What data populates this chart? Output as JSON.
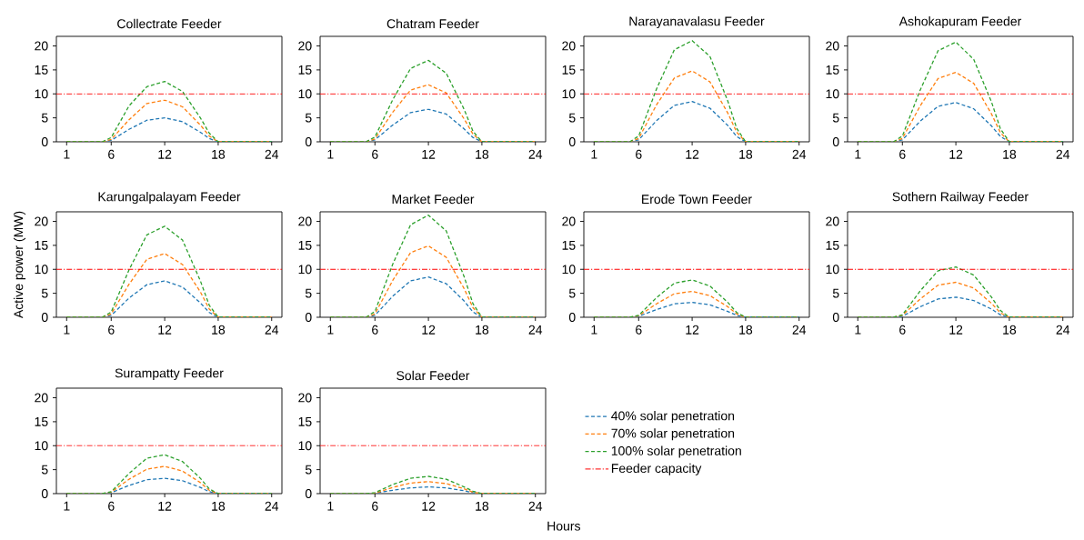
{
  "chart_data": [
    {
      "type": "line",
      "title": "Collectrate Feeder",
      "x": [
        1,
        5,
        6,
        8,
        10,
        12,
        14,
        16,
        17,
        18,
        24
      ],
      "xlim": [
        -0.15,
        25.15
      ],
      "ylim": [
        0,
        22
      ],
      "xticks": [
        1,
        6,
        12,
        18,
        24
      ],
      "yticks": [
        0,
        5,
        10,
        15,
        20
      ],
      "line_style": "dashed",
      "ref_lines": [
        {
          "axis": "y",
          "value": 10,
          "color": "#ff0000",
          "line_style": "dashdot"
        }
      ],
      "series": [
        {
          "color": "#1f77b4",
          "values": [
            0,
            0,
            0.3,
            2.6,
            4.5,
            5.0,
            4.2,
            2.0,
            0.7,
            0,
            0
          ]
        },
        {
          "color": "#ff7f0e",
          "values": [
            0,
            0,
            0.5,
            4.6,
            8.0,
            8.7,
            7.3,
            3.5,
            1.2,
            0,
            0
          ]
        },
        {
          "color": "#2ca02c",
          "values": [
            0,
            0,
            0.9,
            7.5,
            11.5,
            12.6,
            10.5,
            5.0,
            1.8,
            0,
            0
          ]
        }
      ]
    },
    {
      "type": "line",
      "title": "Chatram Feeder",
      "x": [
        1,
        5,
        6,
        8,
        10,
        12,
        14,
        16,
        17,
        18,
        24
      ],
      "xlim": [
        -0.15,
        25.15
      ],
      "ylim": [
        0,
        22
      ],
      "xticks": [
        1,
        6,
        12,
        18,
        24
      ],
      "yticks": [
        0,
        5,
        10,
        15,
        20
      ],
      "line_style": "dashed",
      "ref_lines": [
        {
          "axis": "y",
          "value": 10,
          "color": "#ff0000",
          "line_style": "dashdot"
        }
      ],
      "series": [
        {
          "color": "#1f77b4",
          "values": [
            0,
            0,
            0.4,
            3.5,
            6.1,
            6.8,
            5.8,
            2.7,
            0.9,
            0,
            0
          ]
        },
        {
          "color": "#ff7f0e",
          "values": [
            0,
            0,
            0.6,
            6.2,
            10.8,
            11.9,
            10.2,
            4.8,
            1.6,
            0,
            0
          ]
        },
        {
          "color": "#2ca02c",
          "values": [
            0,
            0,
            1.0,
            8.8,
            15.3,
            17.0,
            14.3,
            6.8,
            2.2,
            0,
            0
          ]
        }
      ]
    },
    {
      "type": "line",
      "title": "Narayanavalasu Feeder",
      "x": [
        1,
        5,
        6,
        8,
        10,
        12,
        14,
        16,
        17,
        18,
        24
      ],
      "xlim": [
        -0.15,
        25.15
      ],
      "ylim": [
        0,
        22
      ],
      "xticks": [
        1,
        6,
        12,
        18,
        24
      ],
      "yticks": [
        0,
        5,
        10,
        15,
        20
      ],
      "line_style": "dashed",
      "ref_lines": [
        {
          "axis": "y",
          "value": 10,
          "color": "#ff0000",
          "line_style": "dashdot"
        }
      ],
      "series": [
        {
          "color": "#1f77b4",
          "values": [
            0,
            0,
            0.4,
            4.4,
            7.6,
            8.4,
            7.0,
            3.4,
            1.1,
            0,
            0
          ]
        },
        {
          "color": "#ff7f0e",
          "values": [
            0,
            0,
            0.7,
            7.7,
            13.3,
            14.8,
            12.5,
            6.0,
            2.0,
            0,
            0
          ]
        },
        {
          "color": "#2ca02c",
          "values": [
            0,
            0,
            1.2,
            11.0,
            19.2,
            21.1,
            17.8,
            8.5,
            2.8,
            0,
            0
          ]
        }
      ]
    },
    {
      "type": "line",
      "title": "Ashokapuram Feeder",
      "x": [
        1,
        5,
        6,
        8,
        10,
        12,
        14,
        16,
        17,
        18,
        24
      ],
      "xlim": [
        -0.15,
        25.15
      ],
      "ylim": [
        0,
        22
      ],
      "xticks": [
        1,
        6,
        12,
        18,
        24
      ],
      "yticks": [
        0,
        5,
        10,
        15,
        20
      ],
      "line_style": "dashed",
      "ref_lines": [
        {
          "axis": "y",
          "value": 10,
          "color": "#ff0000",
          "line_style": "dashdot"
        }
      ],
      "series": [
        {
          "color": "#1f77b4",
          "values": [
            0,
            0,
            0.4,
            4.3,
            7.4,
            8.2,
            6.9,
            3.3,
            1.1,
            0,
            0
          ]
        },
        {
          "color": "#ff7f0e",
          "values": [
            0,
            0,
            0.7,
            7.5,
            13.2,
            14.5,
            12.2,
            5.8,
            1.9,
            0,
            0
          ]
        },
        {
          "color": "#2ca02c",
          "values": [
            0,
            0,
            1.2,
            10.8,
            19.0,
            20.8,
            17.2,
            8.3,
            2.7,
            0,
            0
          ]
        }
      ]
    },
    {
      "type": "line",
      "title": "Karungalpalayam Feeder",
      "ylabel": "Active power (MW)",
      "x": [
        1,
        5,
        6,
        8,
        10,
        12,
        14,
        16,
        17,
        18,
        24
      ],
      "xlim": [
        -0.15,
        25.15
      ],
      "ylim": [
        0,
        22
      ],
      "xticks": [
        1,
        6,
        12,
        18,
        24
      ],
      "yticks": [
        0,
        5,
        10,
        15,
        20
      ],
      "line_style": "dashed",
      "ref_lines": [
        {
          "axis": "y",
          "value": 10,
          "color": "#ff0000",
          "line_style": "dashdot"
        }
      ],
      "series": [
        {
          "color": "#1f77b4",
          "values": [
            0,
            0,
            0.4,
            4.0,
            6.8,
            7.6,
            6.3,
            3.0,
            1.0,
            0,
            0
          ]
        },
        {
          "color": "#ff7f0e",
          "values": [
            0,
            0,
            0.7,
            6.9,
            12.1,
            13.3,
            11.0,
            5.3,
            1.7,
            0,
            0
          ]
        },
        {
          "color": "#2ca02c",
          "values": [
            0,
            0,
            1.1,
            9.9,
            17.2,
            19.0,
            16.1,
            7.6,
            2.5,
            0,
            0
          ]
        }
      ]
    },
    {
      "type": "line",
      "title": "Market Feeder",
      "x": [
        1,
        5,
        6,
        8,
        10,
        12,
        14,
        16,
        17,
        18,
        24
      ],
      "xlim": [
        -0.15,
        25.15
      ],
      "ylim": [
        0,
        22
      ],
      "xticks": [
        1,
        6,
        12,
        18,
        24
      ],
      "yticks": [
        0,
        5,
        10,
        15,
        20
      ],
      "line_style": "dashed",
      "ref_lines": [
        {
          "axis": "y",
          "value": 10,
          "color": "#ff0000",
          "line_style": "dashdot"
        }
      ],
      "series": [
        {
          "color": "#1f77b4",
          "values": [
            0,
            0,
            0.4,
            4.4,
            7.6,
            8.4,
            7.0,
            3.4,
            1.1,
            0,
            0
          ]
        },
        {
          "color": "#ff7f0e",
          "values": [
            0,
            0,
            0.7,
            7.7,
            13.5,
            14.9,
            12.5,
            6.0,
            2.0,
            0,
            0
          ]
        },
        {
          "color": "#2ca02c",
          "values": [
            0,
            0,
            1.2,
            11.1,
            19.3,
            21.3,
            18.0,
            8.5,
            2.8,
            0,
            0
          ]
        }
      ]
    },
    {
      "type": "line",
      "title": "Erode Town Feeder",
      "x": [
        1,
        5,
        6,
        8,
        10,
        12,
        14,
        16,
        17,
        18,
        24
      ],
      "xlim": [
        -0.15,
        25.15
      ],
      "ylim": [
        0,
        22
      ],
      "xticks": [
        1,
        6,
        12,
        18,
        24
      ],
      "yticks": [
        0,
        5,
        10,
        15,
        20
      ],
      "line_style": "dashed",
      "ref_lines": [
        {
          "axis": "y",
          "value": 10,
          "color": "#ff0000",
          "line_style": "dashdot"
        }
      ],
      "series": [
        {
          "color": "#1f77b4",
          "values": [
            0,
            0,
            0.2,
            1.6,
            2.8,
            3.1,
            2.6,
            1.2,
            0.4,
            0,
            0
          ]
        },
        {
          "color": "#ff7f0e",
          "values": [
            0,
            0,
            0.3,
            2.8,
            4.9,
            5.4,
            4.5,
            2.2,
            0.7,
            0,
            0
          ]
        },
        {
          "color": "#2ca02c",
          "values": [
            0,
            0,
            0.4,
            4.1,
            7.1,
            7.8,
            6.5,
            3.1,
            1.0,
            0,
            0
          ]
        }
      ]
    },
    {
      "type": "line",
      "title": "Sothern Railway Feeder",
      "x": [
        1,
        5,
        6,
        8,
        10,
        12,
        14,
        16,
        17,
        18,
        24
      ],
      "xlim": [
        -0.15,
        25.15
      ],
      "ylim": [
        0,
        22
      ],
      "xticks": [
        1,
        6,
        12,
        18,
        24
      ],
      "yticks": [
        0,
        5,
        10,
        15,
        20
      ],
      "line_style": "dashed",
      "ref_lines": [
        {
          "axis": "y",
          "value": 10,
          "color": "#ff0000",
          "line_style": "dashdot"
        }
      ],
      "series": [
        {
          "color": "#1f77b4",
          "values": [
            0,
            0,
            0.2,
            2.2,
            3.8,
            4.2,
            3.5,
            1.7,
            0.5,
            0,
            0
          ]
        },
        {
          "color": "#ff7f0e",
          "values": [
            0,
            0,
            0.4,
            3.8,
            6.7,
            7.3,
            6.1,
            2.9,
            0.9,
            0,
            0
          ]
        },
        {
          "color": "#2ca02c",
          "values": [
            0,
            0,
            0.5,
            5.5,
            9.7,
            10.5,
            8.8,
            4.2,
            1.4,
            0,
            0
          ]
        }
      ]
    },
    {
      "type": "line",
      "title": "Surampatty Feeder",
      "x": [
        1,
        5,
        6,
        8,
        10,
        12,
        14,
        16,
        17,
        18,
        24
      ],
      "xlim": [
        -0.15,
        25.15
      ],
      "ylim": [
        0,
        22
      ],
      "xticks": [
        1,
        6,
        12,
        18,
        24
      ],
      "yticks": [
        0,
        5,
        10,
        15,
        20
      ],
      "line_style": "dashed",
      "ref_lines": [
        {
          "axis": "y",
          "value": 10,
          "color": "#ff0000",
          "line_style": "dashdot"
        }
      ],
      "series": [
        {
          "color": "#1f77b4",
          "values": [
            0,
            0,
            0.2,
            1.7,
            2.9,
            3.2,
            2.7,
            1.3,
            0.4,
            0,
            0
          ]
        },
        {
          "color": "#ff7f0e",
          "values": [
            0,
            0,
            0.3,
            3.0,
            5.1,
            5.7,
            4.7,
            2.3,
            0.7,
            0,
            0
          ]
        },
        {
          "color": "#2ca02c",
          "values": [
            0,
            0,
            0.4,
            4.2,
            7.4,
            8.1,
            6.7,
            3.2,
            1.0,
            0,
            0
          ]
        }
      ]
    },
    {
      "type": "line",
      "title": "Solar Feeder",
      "xlabel": "Hours",
      "legend": "right",
      "x": [
        1,
        5,
        6,
        8,
        10,
        12,
        14,
        16,
        17,
        18,
        24
      ],
      "xlim": [
        -0.15,
        25.15
      ],
      "ylim": [
        0,
        22
      ],
      "xticks": [
        1,
        6,
        12,
        18,
        24
      ],
      "yticks": [
        0,
        5,
        10,
        15,
        20
      ],
      "line_style": "dashed",
      "ref_lines": [
        {
          "axis": "y",
          "value": 10,
          "color": "#ff0000",
          "line_style": "dashdot",
          "label": "Feeder capacity"
        }
      ],
      "series": [
        {
          "name": "40% solar penetration",
          "color": "#1f77b4",
          "values": [
            0,
            0,
            0.1,
            0.7,
            1.2,
            1.4,
            1.2,
            0.6,
            0.2,
            0,
            0
          ]
        },
        {
          "name": "70% solar penetration",
          "color": "#ff7f0e",
          "values": [
            0,
            0,
            0.1,
            1.3,
            2.2,
            2.5,
            2.1,
            1.0,
            0.3,
            0,
            0
          ]
        },
        {
          "name": "100% solar penetration",
          "color": "#2ca02c",
          "values": [
            0,
            0,
            0.2,
            1.9,
            3.2,
            3.6,
            3.0,
            1.4,
            0.5,
            0,
            0
          ]
        }
      ]
    }
  ]
}
